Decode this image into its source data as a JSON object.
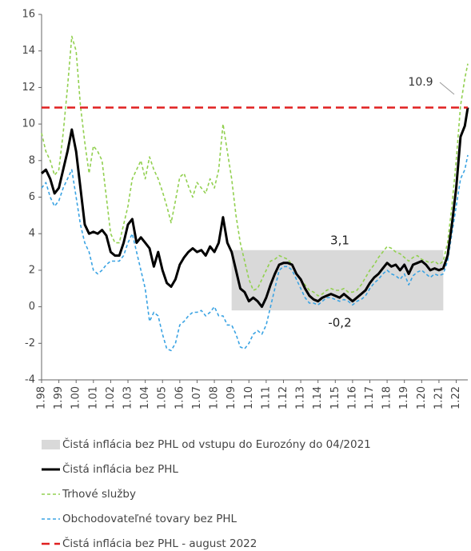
{
  "chart_data": {
    "type": "line",
    "x": [
      1998,
      1998.25,
      1998.5,
      1998.75,
      1999,
      1999.25,
      1999.5,
      1999.75,
      2000,
      2000.25,
      2000.5,
      2000.75,
      2001,
      2001.25,
      2001.5,
      2001.75,
      2002,
      2002.25,
      2002.5,
      2002.75,
      2003,
      2003.25,
      2003.5,
      2003.75,
      2004,
      2004.25,
      2004.5,
      2004.75,
      2005,
      2005.25,
      2005.5,
      2005.75,
      2006,
      2006.25,
      2006.5,
      2006.75,
      2007,
      2007.25,
      2007.5,
      2007.75,
      2008,
      2008.25,
      2008.5,
      2008.75,
      2009,
      2009.25,
      2009.5,
      2009.75,
      2010,
      2010.25,
      2010.5,
      2010.75,
      2011,
      2011.25,
      2011.5,
      2011.75,
      2012,
      2012.25,
      2012.5,
      2012.75,
      2013,
      2013.25,
      2013.5,
      2013.75,
      2014,
      2014.25,
      2014.5,
      2014.75,
      2015,
      2015.25,
      2015.5,
      2015.75,
      2016,
      2016.25,
      2016.5,
      2016.75,
      2017,
      2017.25,
      2017.5,
      2017.75,
      2018,
      2018.25,
      2018.5,
      2018.75,
      2019,
      2019.25,
      2019.5,
      2019.75,
      2020,
      2020.25,
      2020.5,
      2020.75,
      2021,
      2021.25,
      2021.5,
      2021.75,
      2022,
      2022.25,
      2022.5,
      2022.67
    ],
    "series": [
      {
        "name": "Čistá inflácia bez PHL",
        "color": "#000000",
        "style": "solid",
        "values": [
          7.3,
          7.5,
          7.0,
          6.2,
          6.5,
          7.5,
          8.5,
          9.7,
          8.5,
          6.5,
          4.5,
          4.0,
          4.1,
          4.0,
          4.2,
          3.9,
          3.0,
          2.8,
          2.8,
          3.5,
          4.5,
          4.8,
          3.5,
          3.8,
          3.5,
          3.2,
          2.2,
          3.0,
          2.0,
          1.3,
          1.1,
          1.5,
          2.3,
          2.7,
          3.0,
          3.2,
          3.0,
          3.1,
          2.8,
          3.3,
          3.0,
          3.5,
          4.9,
          3.5,
          3.0,
          2.0,
          1.0,
          0.8,
          0.3,
          0.5,
          0.3,
          0.0,
          0.5,
          1.2,
          1.8,
          2.3,
          2.4,
          2.4,
          2.3,
          1.8,
          1.5,
          1.0,
          0.6,
          0.4,
          0.3,
          0.5,
          0.6,
          0.7,
          0.6,
          0.5,
          0.7,
          0.5,
          0.3,
          0.5,
          0.7,
          0.9,
          1.3,
          1.6,
          1.8,
          2.1,
          2.4,
          2.2,
          2.3,
          2.0,
          2.3,
          1.8,
          2.3,
          2.4,
          2.5,
          2.3,
          2.0,
          2.1,
          2.0,
          2.1,
          2.8,
          4.5,
          6.5,
          9.3,
          9.9,
          10.9
        ]
      },
      {
        "name": "Trhové služby",
        "color": "#92d050",
        "style": "dashed",
        "values": [
          9.5,
          8.5,
          8.0,
          7.2,
          7.5,
          9.5,
          12.0,
          14.8,
          14.0,
          11.0,
          9.0,
          7.3,
          8.8,
          8.5,
          8.0,
          6.0,
          4.0,
          3.5,
          3.5,
          4.5,
          5.5,
          7.0,
          7.5,
          8.0,
          7.0,
          8.2,
          7.5,
          7.0,
          6.3,
          5.5,
          4.6,
          5.8,
          7.1,
          7.3,
          6.6,
          6.0,
          6.8,
          6.5,
          6.2,
          7.0,
          6.5,
          7.5,
          10.0,
          8.5,
          7.0,
          5.0,
          3.5,
          2.5,
          1.5,
          0.9,
          1.0,
          1.5,
          2.0,
          2.5,
          2.6,
          2.8,
          2.7,
          2.6,
          2.3,
          1.8,
          1.5,
          1.2,
          0.9,
          0.8,
          0.6,
          0.7,
          0.9,
          1.0,
          0.9,
          0.9,
          1.0,
          0.8,
          0.8,
          0.9,
          1.2,
          1.6,
          2.0,
          2.3,
          2.7,
          3.0,
          3.3,
          3.2,
          3.0,
          2.9,
          2.7,
          2.5,
          2.7,
          2.8,
          2.6,
          2.5,
          2.4,
          2.5,
          2.3,
          2.5,
          3.5,
          5.5,
          8.0,
          11.0,
          12.5,
          13.3
        ]
      },
      {
        "name": "Obchodovateľné tovary bez PHL",
        "color": "#3aa3e3",
        "style": "dashed",
        "values": [
          6.5,
          6.8,
          6.0,
          5.5,
          5.8,
          6.5,
          7.0,
          7.5,
          6.0,
          4.5,
          3.5,
          3.0,
          2.0,
          1.8,
          2.0,
          2.3,
          2.5,
          2.5,
          2.5,
          2.8,
          3.5,
          4.0,
          3.0,
          2.0,
          1.0,
          -0.8,
          -0.3,
          -0.5,
          -1.5,
          -2.3,
          -2.4,
          -2.0,
          -1.0,
          -0.8,
          -0.5,
          -0.3,
          -0.3,
          -0.2,
          -0.5,
          -0.3,
          0.0,
          -0.5,
          -0.5,
          -1.0,
          -1.0,
          -1.5,
          -2.2,
          -2.3,
          -2.0,
          -1.5,
          -1.3,
          -1.5,
          -1.0,
          0.0,
          1.0,
          2.0,
          2.2,
          2.2,
          2.0,
          1.5,
          1.0,
          0.5,
          0.2,
          0.2,
          0.1,
          0.3,
          0.5,
          0.5,
          0.4,
          0.3,
          0.4,
          0.3,
          0.1,
          0.3,
          0.4,
          0.6,
          1.0,
          1.3,
          1.5,
          1.8,
          2.0,
          1.8,
          1.7,
          1.5,
          1.8,
          1.2,
          1.7,
          1.9,
          2.0,
          1.8,
          1.6,
          1.8,
          1.7,
          1.8,
          2.5,
          4.0,
          5.5,
          7.0,
          7.5,
          8.3
        ]
      }
    ],
    "band": {
      "name": "Čistá inflácia bez PHL od vstupu do Eurozóny do 04/2021",
      "color": "#d9d9d9",
      "x_range": [
        2009,
        2021.25
      ],
      "y_range": [
        -0.2,
        3.1
      ],
      "value_labels": [
        "-0,2",
        "3,1"
      ]
    },
    "reference_line": {
      "name": "Čistá inflácia bez PHL - august 2022",
      "color": "#e02020",
      "value": 10.9
    },
    "xlim": [
      1998,
      2022.67
    ],
    "xticks": [
      {
        "value": 1998,
        "label": "1.98"
      },
      {
        "value": 1999,
        "label": "1.99"
      },
      {
        "value": 2000,
        "label": "1.00"
      },
      {
        "value": 2001,
        "label": "1.01"
      },
      {
        "value": 2002,
        "label": "1.02"
      },
      {
        "value": 2003,
        "label": "1.03"
      },
      {
        "value": 2004,
        "label": "1.04"
      },
      {
        "value": 2005,
        "label": "1.05"
      },
      {
        "value": 2006,
        "label": "1.06"
      },
      {
        "value": 2007,
        "label": "1.07"
      },
      {
        "value": 2008,
        "label": "1.08"
      },
      {
        "value": 2009,
        "label": "1.09"
      },
      {
        "value": 2010,
        "label": "1.10"
      },
      {
        "value": 2011,
        "label": "1.11"
      },
      {
        "value": 2012,
        "label": "1.12"
      },
      {
        "value": 2013,
        "label": "1.13"
      },
      {
        "value": 2014,
        "label": "1.14"
      },
      {
        "value": 2015,
        "label": "1.15"
      },
      {
        "value": 2016,
        "label": "1.16"
      },
      {
        "value": 2017,
        "label": "1.17"
      },
      {
        "value": 2018,
        "label": "1.18"
      },
      {
        "value": 2019,
        "label": "1.19"
      },
      {
        "value": 2020,
        "label": "1.20"
      },
      {
        "value": 2021,
        "label": "1.21"
      },
      {
        "value": 2022,
        "label": "1.22"
      }
    ],
    "ylim": [
      -4,
      16
    ],
    "yticks": [
      -4,
      -2,
      0,
      2,
      4,
      6,
      8,
      10,
      12,
      14,
      16
    ],
    "grid": false
  }
}
